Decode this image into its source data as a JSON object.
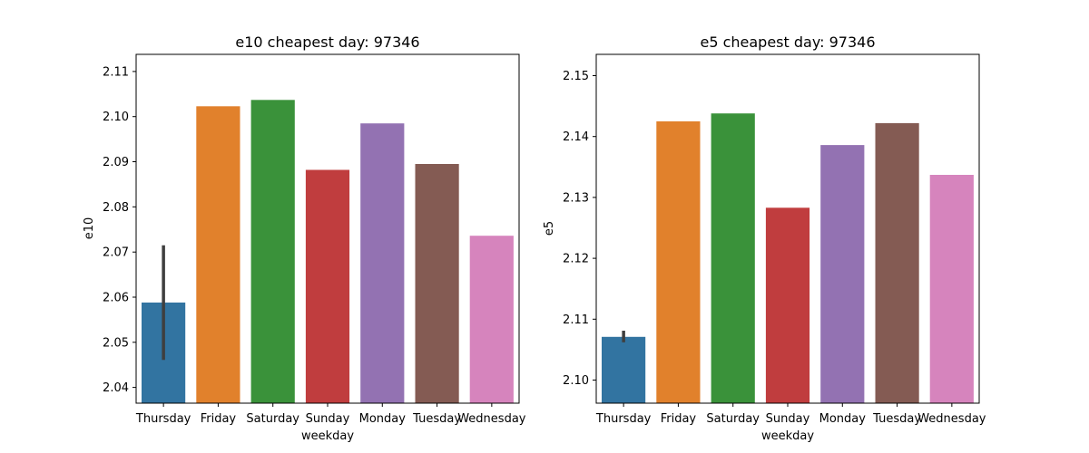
{
  "chart_data": [
    {
      "type": "bar",
      "title": "e10 cheapest day: 97346",
      "xlabel": "weekday",
      "ylabel": "e10",
      "categories": [
        "Thursday",
        "Friday",
        "Saturday",
        "Sunday",
        "Monday",
        "Tuesday",
        "Wednesday"
      ],
      "values": [
        2.0588,
        2.1023,
        2.1037,
        2.0882,
        2.0985,
        2.0895,
        2.0736
      ],
      "error_bars": [
        {
          "category": "Thursday",
          "low": 2.0461,
          "high": 2.0715
        }
      ],
      "colors": [
        "#3274a1",
        "#e1812c",
        "#3a923a",
        "#c03d3e",
        "#9372b2",
        "#845b53",
        "#d684bd"
      ],
      "ylim": [
        2.0365,
        2.1138
      ],
      "yticks": [
        2.04,
        2.05,
        2.06,
        2.07,
        2.08,
        2.09,
        2.1,
        2.11
      ],
      "ytick_labels": [
        "2.04",
        "2.05",
        "2.06",
        "2.07",
        "2.08",
        "2.09",
        "2.10",
        "2.11"
      ],
      "grid": false
    },
    {
      "type": "bar",
      "title": "e5 cheapest day: 97346",
      "xlabel": "weekday",
      "ylabel": "e5",
      "categories": [
        "Thursday",
        "Friday",
        "Saturday",
        "Sunday",
        "Monday",
        "Tuesday",
        "Wednesday"
      ],
      "values": [
        2.1071,
        2.1425,
        2.1438,
        2.1283,
        2.1386,
        2.1422,
        2.1337
      ],
      "error_bars": [
        {
          "category": "Thursday",
          "low": 2.1062,
          "high": 2.1081
        }
      ],
      "colors": [
        "#3274a1",
        "#e1812c",
        "#3a923a",
        "#c03d3e",
        "#9372b2",
        "#845b53",
        "#d684bd"
      ],
      "ylim": [
        2.0962,
        2.1535
      ],
      "yticks": [
        2.1,
        2.11,
        2.12,
        2.13,
        2.14,
        2.15
      ],
      "ytick_labels": [
        "2.10",
        "2.11",
        "2.12",
        "2.13",
        "2.14",
        "2.15"
      ],
      "grid": false
    }
  ]
}
